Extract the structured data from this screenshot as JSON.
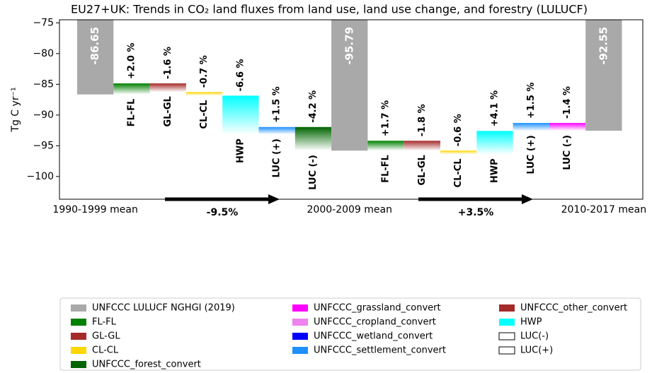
{
  "chart_data": {
    "type": "waterfall",
    "title": "EU27+UK: Trends in CO₂ land fluxes from land use, land use change, and forestry (LULUCF)",
    "y_label": "Tg C yr⁻¹",
    "ylim": [
      -103.7,
      -74.5
    ],
    "yticks": [
      {
        "value": -75,
        "label": "−75"
      },
      {
        "value": -80,
        "label": "−80"
      },
      {
        "value": -85,
        "label": "−85"
      },
      {
        "value": -90,
        "label": "−90"
      },
      {
        "value": -95,
        "label": "−95"
      },
      {
        "value": -100,
        "label": "−100"
      }
    ],
    "bars": [
      {
        "kind": "total",
        "category": "1990-1999 mean",
        "value": -86.65,
        "color": "#a9a9a9"
      },
      {
        "kind": "change",
        "category": "FL-FL",
        "value": 1.8,
        "percent": "+2.0 %",
        "color": "#008000"
      },
      {
        "kind": "change",
        "category": "GL-GL",
        "value": -1.4,
        "percent": "-1.6 %",
        "color": "#a52a2a"
      },
      {
        "kind": "change",
        "category": "CL-CL",
        "value": -0.6,
        "percent": "-0.7 %",
        "color": "#ffd700"
      },
      {
        "kind": "change",
        "category": "HWP",
        "value": -6.3,
        "percent": "-6.6 %",
        "color": "#00ffff"
      },
      {
        "kind": "change",
        "category": "LUC (+)",
        "value": 1.2,
        "percent": "+1.5 %",
        "color": "#1e90ff"
      },
      {
        "kind": "change",
        "category": "LUC (-)",
        "value": -3.84,
        "percent": "-4.2 %",
        "color": "#006400"
      },
      {
        "kind": "total",
        "category": "2000-2009 mean",
        "value": -95.79,
        "color": "#a9a9a9"
      },
      {
        "kind": "change",
        "category": "FL-FL",
        "value": 1.6,
        "percent": "+1.7 %",
        "color": "#008000"
      },
      {
        "kind": "change",
        "category": "GL-GL",
        "value": -1.6,
        "percent": "-1.8 %",
        "color": "#a52a2a"
      },
      {
        "kind": "change",
        "category": "CL-CL",
        "value": -0.6,
        "percent": "-0.6 %",
        "color": "#ffd700"
      },
      {
        "kind": "change",
        "category": "HWP",
        "value": 3.8,
        "percent": "+4.1 %",
        "color": "#00ffff"
      },
      {
        "kind": "change",
        "category": "LUC (+)",
        "value": 1.3,
        "percent": "+1.5 %",
        "color": "#1e90ff"
      },
      {
        "kind": "change",
        "category": "LUC (-)",
        "value": -1.26,
        "percent": "-1.4 %",
        "color": "#ff00ff"
      },
      {
        "kind": "total",
        "category": "2010-2017 mean",
        "value": -92.55,
        "color": "#a9a9a9"
      }
    ],
    "period_changes": [
      "-9.5%",
      "+3.5%"
    ],
    "legend": [
      {
        "name": "UNFCCC LULUCF NGHGI (2019)",
        "color": "#a9a9a9"
      },
      {
        "name": "FL-FL",
        "color": "#008000"
      },
      {
        "name": "GL-GL",
        "color": "#a52a2a"
      },
      {
        "name": "CL-CL",
        "color": "#ffd700"
      },
      {
        "name": "UNFCCC_forest_convert",
        "color": "#006400"
      },
      {
        "name": "UNFCCC_grassland_convert",
        "color": "#ff00ff"
      },
      {
        "name": "UNFCCC_cropland_convert",
        "color": "#ee82ee"
      },
      {
        "name": "UNFCCC_wetland_convert",
        "color": "#0000ff"
      },
      {
        "name": "UNFCCC_settlement_convert",
        "color": "#1e90ff"
      },
      {
        "name": "UNFCCC_other_convert",
        "color": "#a52a2a"
      },
      {
        "name": "HWP",
        "color": "#00ffff"
      },
      {
        "name": "LUC(-)",
        "color": "#ffffff"
      },
      {
        "name": "LUC(+)",
        "color": "#ffffff"
      }
    ]
  }
}
